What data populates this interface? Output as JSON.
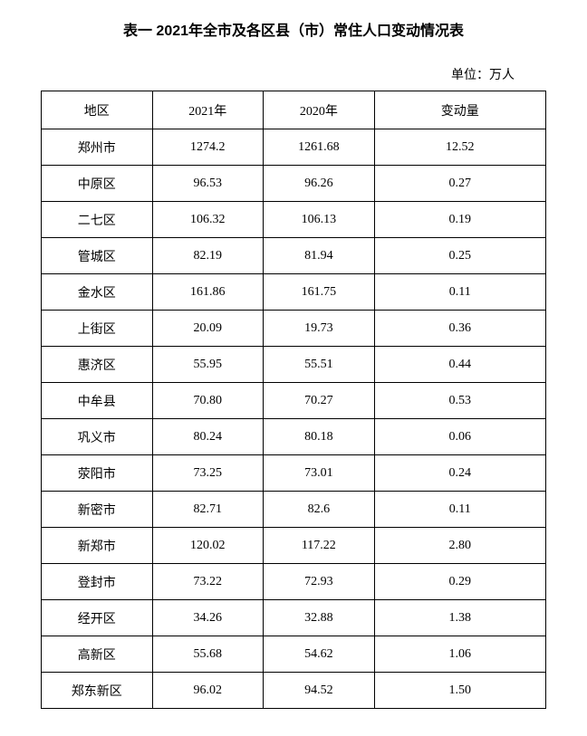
{
  "title": "表一  2021年全市及各区县（市）常住人口变动情况表",
  "unit_label": "单位：万人",
  "table": {
    "columns": [
      "地区",
      "2021年",
      "2020年",
      "变动量"
    ],
    "rows": [
      [
        "郑州市",
        "1274.2",
        "1261.68",
        "12.52"
      ],
      [
        "中原区",
        "96.53",
        "96.26",
        "0.27"
      ],
      [
        "二七区",
        "106.32",
        "106.13",
        "0.19"
      ],
      [
        "管城区",
        "82.19",
        "81.94",
        "0.25"
      ],
      [
        "金水区",
        "161.86",
        "161.75",
        "0.11"
      ],
      [
        "上街区",
        "20.09",
        "19.73",
        "0.36"
      ],
      [
        "惠济区",
        "55.95",
        "55.51",
        "0.44"
      ],
      [
        "中牟县",
        "70.80",
        "70.27",
        "0.53"
      ],
      [
        "巩义市",
        "80.24",
        "80.18",
        "0.06"
      ],
      [
        "荥阳市",
        "73.25",
        "73.01",
        "0.24"
      ],
      [
        "新密市",
        "82.71",
        "82.6",
        "0.11"
      ],
      [
        "新郑市",
        "120.02",
        "117.22",
        "2.80"
      ],
      [
        "登封市",
        "73.22",
        "72.93",
        "0.29"
      ],
      [
        "经开区",
        "34.26",
        "32.88",
        "1.38"
      ],
      [
        "高新区",
        "55.68",
        "54.62",
        "1.06"
      ],
      [
        "郑东新区",
        "96.02",
        "94.52",
        "1.50"
      ]
    ],
    "col_classes": [
      "col-region",
      "col-y1",
      "col-y2",
      "col-delta"
    ]
  }
}
